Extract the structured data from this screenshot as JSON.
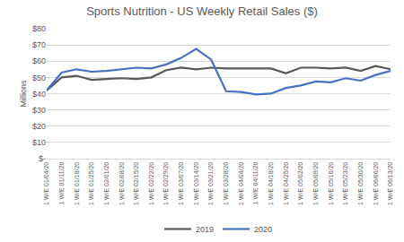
{
  "chart_data": {
    "type": "line",
    "title": "Sports Nutrition - US Weekly Retail Sales ($)",
    "y_label": "Millions",
    "categories": [
      "1 W/E 01/04/20",
      "1 W/E 01/11/20",
      "1 W/E 01/18/20",
      "1 W/E 01/25/20",
      "1 W/E 02/01/20",
      "1 W/E 02/08/20",
      "1 W/E 02/15/20",
      "1 W/E 02/22/20",
      "1 W/E 02/29/20",
      "1 W/E 03/07/20",
      "1 W/E 03/14/20",
      "1 W/E 03/21/20",
      "1 W/E 03/28/20",
      "1 W/E 04/04/20",
      "1 W/E 04/11/20",
      "1 W/E 04/18/20",
      "1 W/E 04/25/20",
      "1 W/E 05/02/20",
      "1 W/E 05/09/20",
      "1 W/E 05/16/20",
      "1 W/E 05/23/20",
      "1 W/E 05/30/20",
      "1 W/E 06/06/20",
      "1 W/E 06/13/20"
    ],
    "series": [
      {
        "name": "2019",
        "color": "#595959",
        "values": [
          42,
          50,
          51,
          48.5,
          49,
          49.5,
          49,
          50,
          54.5,
          56,
          55,
          56,
          55.5,
          55.5,
          55.5,
          55.5,
          52.5,
          56,
          56,
          55.5,
          56,
          54,
          57,
          55
        ]
      },
      {
        "name": "2020",
        "color": "#4472c4",
        "values": [
          42,
          53,
          55,
          53.5,
          54,
          55,
          56,
          55.5,
          58,
          62,
          67.5,
          61,
          41.5,
          41,
          39.5,
          40,
          43.5,
          45,
          47.5,
          47,
          49.5,
          48,
          51.5,
          54
        ]
      }
    ],
    "ylim": [
      0,
      80
    ],
    "yticks": [
      {
        "value": 0,
        "label": "$-"
      },
      {
        "value": 10,
        "label": "$10"
      },
      {
        "value": 20,
        "label": "$20"
      },
      {
        "value": 30,
        "label": "$30"
      },
      {
        "value": 40,
        "label": "$40"
      },
      {
        "value": 50,
        "label": "$50"
      },
      {
        "value": 60,
        "label": "$60"
      },
      {
        "value": 70,
        "label": "$70"
      },
      {
        "value": 80,
        "label": "$80"
      }
    ],
    "grid": true,
    "legend": "bottom"
  }
}
